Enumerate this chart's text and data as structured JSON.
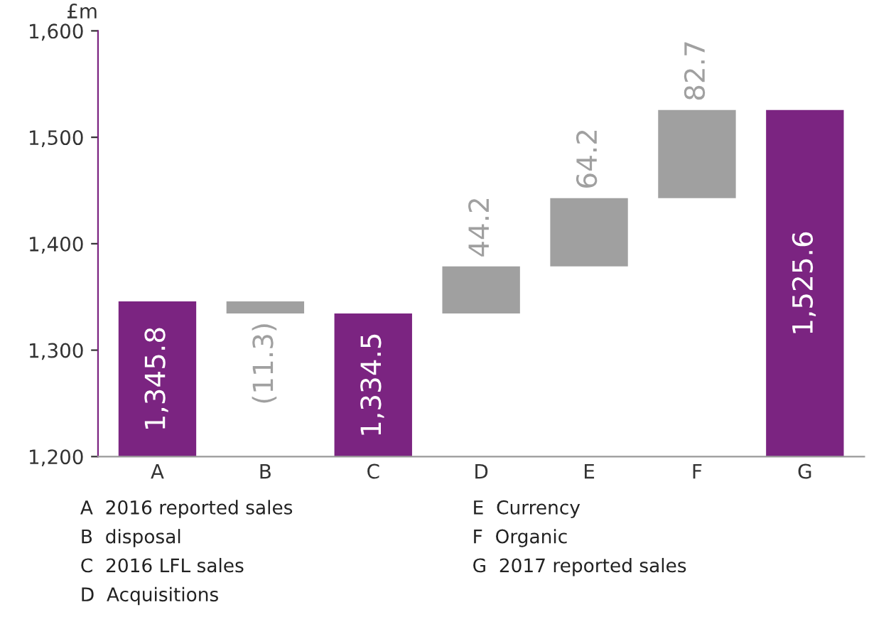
{
  "chart_data": {
    "type": "bar",
    "ylabel": "£m",
    "categories": [
      "A",
      "B",
      "C",
      "D",
      "E",
      "F",
      "G"
    ],
    "values": [
      1345.8,
      -11.3,
      1334.5,
      44.2,
      64.2,
      82.7,
      1525.6
    ],
    "base": [
      0,
      1345.8,
      0,
      1334.5,
      1378.7,
      1442.9,
      0
    ],
    "colors": [
      "#7b2481",
      "#a0a0a0",
      "#7b2481",
      "#a0a0a0",
      "#a0a0a0",
      "#a0a0a0",
      "#7b2481"
    ],
    "value_labels": [
      "1,345.8",
      "(11.3)",
      "1,334.5",
      "44.2",
      "64.2",
      "82.7",
      "1,525.6"
    ],
    "ylim": [
      1200,
      1600
    ],
    "yticks": [
      {
        "value": 1200,
        "label": "1,200"
      },
      {
        "value": 1300,
        "label": "1,300"
      },
      {
        "value": 1400,
        "label": "1,400"
      },
      {
        "value": 1500,
        "label": "1,500"
      },
      {
        "value": 1600,
        "label": "1,600"
      }
    ],
    "grid": false,
    "annotations": [
      "A  2016 reported sales",
      "B  disposal",
      "C  2016 LFL sales",
      "D  Acquisitions",
      "E  Currency",
      "F  Organic",
      "G  2017 reported sales"
    ]
  }
}
